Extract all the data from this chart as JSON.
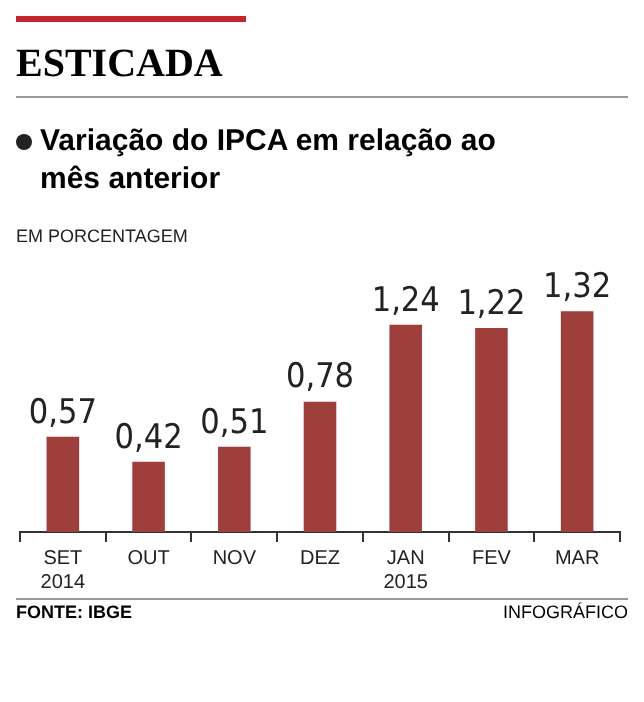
{
  "chart_data": {
    "type": "bar",
    "title": "ESTICADA",
    "subtitle": "Variação do IPCA em relação ao mês anterior",
    "ylabel": "EM PORCENTAGEM",
    "categories": [
      "SET 2014",
      "OUT",
      "NOV",
      "DEZ",
      "JAN 2015",
      "FEV",
      "MAR"
    ],
    "values": [
      0.57,
      0.42,
      0.51,
      0.78,
      1.24,
      1.22,
      1.32
    ],
    "value_labels": [
      "0,57",
      "0,42",
      "0,51",
      "0,78",
      "1,24",
      "1,22",
      "1,32"
    ],
    "color": "#9e3f3c",
    "tick_labels": "x",
    "annotations": [
      "FONTE: IBGE",
      "INFOGRÁFICO"
    ]
  }
}
